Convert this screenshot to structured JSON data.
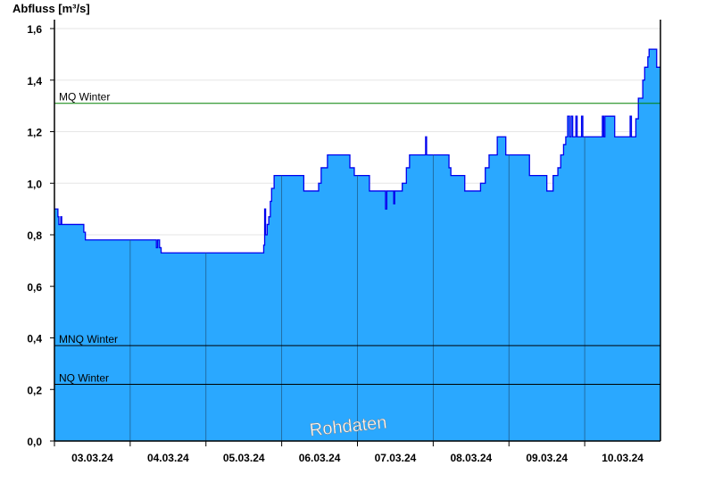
{
  "chart_data": {
    "type": "area",
    "ylabel": "Abfluss [m³/s]",
    "ylim": [
      0,
      1.6
    ],
    "yticks": [
      "0,0",
      "0,2",
      "0,4",
      "0,6",
      "0,8",
      "1,0",
      "1,2",
      "1,4",
      "1,6"
    ],
    "ytick_values": [
      0,
      0.2,
      0.4,
      0.6,
      0.8,
      1.0,
      1.2,
      1.4,
      1.6
    ],
    "xlim_hours": [
      0,
      192
    ],
    "xticks": [
      "03.03.24",
      "04.03.24",
      "05.03.24",
      "06.03.24",
      "07.03.24",
      "08.03.24",
      "09.03.24",
      "10.03.24"
    ],
    "grid": true,
    "colors": {
      "fill": "#2aa8ff",
      "line": "#0000ee",
      "mq": "#008000",
      "mnq": "#000000",
      "nq": "#000000"
    },
    "reference_lines": [
      {
        "label": "MQ Winter",
        "value": 1.31
      },
      {
        "label": "MNQ Winter",
        "value": 0.37
      },
      {
        "label": "NQ Winter",
        "value": 0.22
      }
    ],
    "watermark": "Rohdaten",
    "series_step_hours_since_03.03.24": [
      [
        0,
        0.9
      ],
      [
        1.1,
        0.87
      ],
      [
        1.4,
        0.84
      ],
      [
        2,
        0.87
      ],
      [
        2.3,
        0.84
      ],
      [
        9.3,
        0.81
      ],
      [
        9.8,
        0.78
      ],
      [
        32.3,
        0.75
      ],
      [
        32.7,
        0.78
      ],
      [
        33.3,
        0.75
      ],
      [
        33.8,
        0.73
      ],
      [
        66.3,
        0.76
      ],
      [
        66.6,
        0.9
      ],
      [
        66.9,
        0.8
      ],
      [
        67.4,
        0.84
      ],
      [
        67.9,
        0.87
      ],
      [
        68.4,
        0.93
      ],
      [
        68.8,
        0.98
      ],
      [
        69.6,
        1.03
      ],
      [
        79,
        0.97
      ],
      [
        83.7,
        1.0
      ],
      [
        84.5,
        1.06
      ],
      [
        86.5,
        1.11
      ],
      [
        93.6,
        1.06
      ],
      [
        95,
        1.03
      ],
      [
        99.8,
        0.97
      ],
      [
        104.9,
        0.9
      ],
      [
        105.3,
        0.97
      ],
      [
        107.5,
        0.92
      ],
      [
        107.8,
        0.97
      ],
      [
        110.2,
        1.0
      ],
      [
        111.5,
        1.06
      ],
      [
        112.5,
        1.11
      ],
      [
        117.6,
        1.18
      ],
      [
        117.9,
        1.11
      ],
      [
        125,
        1.06
      ],
      [
        125.6,
        1.03
      ],
      [
        130,
        0.97
      ],
      [
        135,
        1.0
      ],
      [
        136.5,
        1.06
      ],
      [
        137.7,
        1.11
      ],
      [
        140.3,
        1.18
      ],
      [
        143,
        1.11
      ],
      [
        150.5,
        1.03
      ],
      [
        156,
        0.97
      ],
      [
        158,
        1.03
      ],
      [
        159.5,
        1.06
      ],
      [
        160.4,
        1.11
      ],
      [
        161.3,
        1.15
      ],
      [
        162,
        1.18
      ],
      [
        162.6,
        1.26
      ],
      [
        163.2,
        1.18
      ],
      [
        163.7,
        1.26
      ],
      [
        164.2,
        1.18
      ],
      [
        165.2,
        1.26
      ],
      [
        165.6,
        1.18
      ],
      [
        167,
        1.26
      ],
      [
        167.4,
        1.18
      ],
      [
        173.6,
        1.26
      ],
      [
        174,
        1.18
      ],
      [
        174.4,
        1.26
      ],
      [
        177.5,
        1.18
      ],
      [
        182.4,
        1.26
      ],
      [
        182.8,
        1.18
      ],
      [
        184.2,
        1.25
      ],
      [
        185,
        1.33
      ],
      [
        186.4,
        1.4
      ],
      [
        187,
        1.45
      ],
      [
        188,
        1.49
      ],
      [
        188.4,
        1.52
      ],
      [
        190.8,
        1.45
      ]
    ]
  }
}
